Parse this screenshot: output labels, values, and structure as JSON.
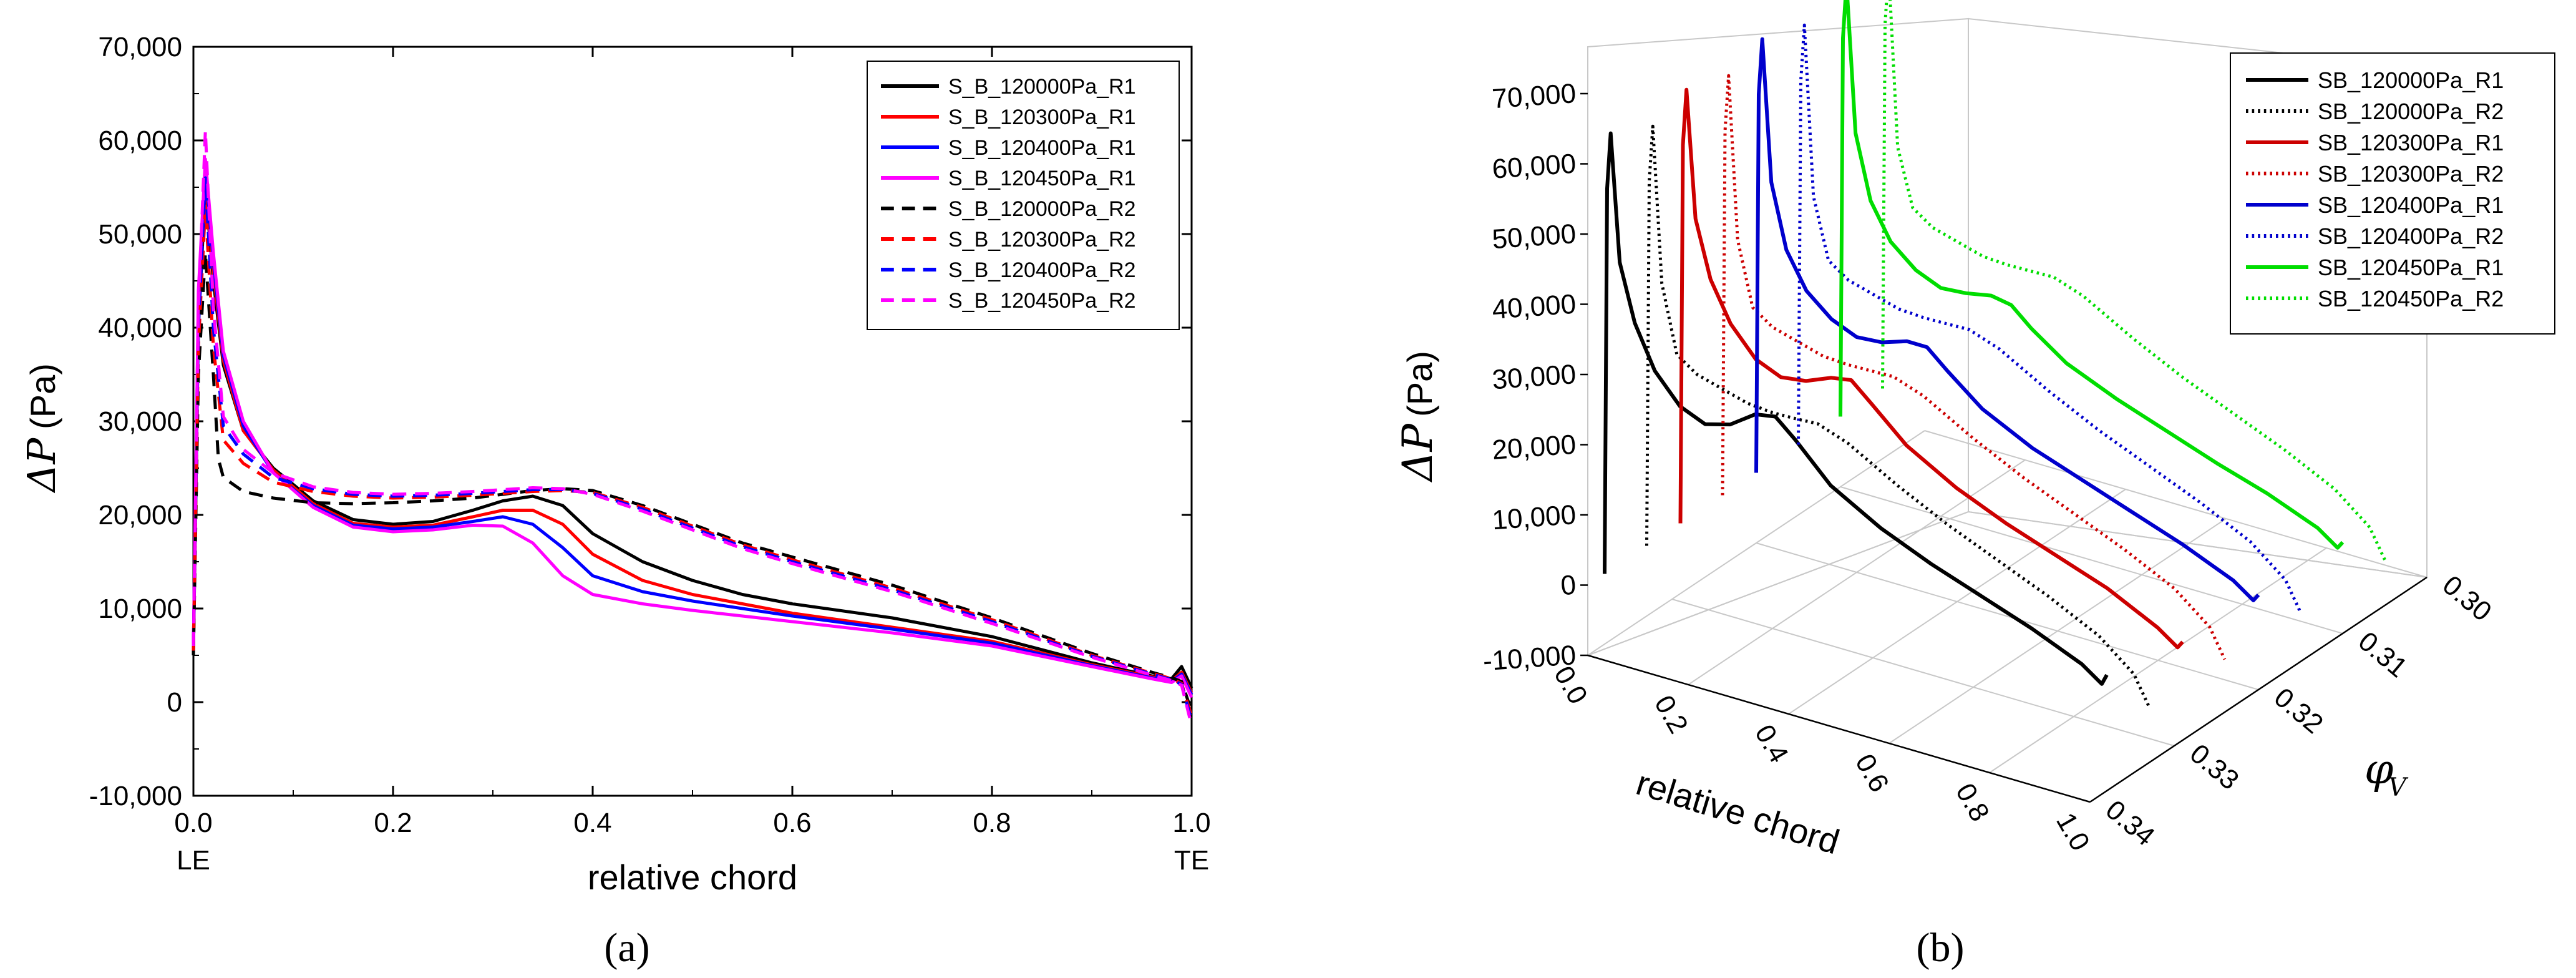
{
  "chart_data": [
    {
      "panel": "a",
      "type": "line",
      "panel_label": "(a)",
      "xlabel": "relative chord",
      "ylabel_symbol": "ΔP",
      "ylabel_unit": "(Pa)",
      "xlim": [
        0,
        1
      ],
      "ylim": [
        -10000,
        70000
      ],
      "x_ticks": [
        "0.0",
        "0.2",
        "0.4",
        "0.6",
        "0.8",
        "1.0"
      ],
      "y_ticks": [
        "-10,000",
        "0",
        "10,000",
        "20,000",
        "30,000",
        "40,000",
        "50,000",
        "60,000",
        "70,000"
      ],
      "x_end_labels": [
        "LE",
        "TE"
      ],
      "grid": false,
      "legend_position": "top-right",
      "series": [
        {
          "name": "S_B_120000Pa_R1",
          "color": "#000000",
          "dash": "solid",
          "x": [
            0.0,
            0.005,
            0.012,
            0.02,
            0.03,
            0.05,
            0.08,
            0.12,
            0.16,
            0.2,
            0.24,
            0.28,
            0.31,
            0.34,
            0.37,
            0.4,
            0.45,
            0.5,
            0.55,
            0.6,
            0.7,
            0.8,
            0.9,
            0.96,
            0.98,
            0.99,
            1.0
          ],
          "y": [
            5000,
            40000,
            55000,
            45000,
            36000,
            29000,
            25000,
            21500,
            19500,
            19000,
            19300,
            20500,
            21500,
            22000,
            21000,
            18000,
            15000,
            13000,
            11500,
            10500,
            9000,
            7000,
            4200,
            2800,
            2500,
            3800,
            1500
          ]
        },
        {
          "name": "S_B_120300Pa_R1",
          "color": "#ff0000",
          "dash": "solid",
          "x": [
            0.0,
            0.005,
            0.012,
            0.02,
            0.03,
            0.05,
            0.08,
            0.12,
            0.16,
            0.2,
            0.24,
            0.28,
            0.31,
            0.34,
            0.37,
            0.4,
            0.45,
            0.5,
            0.55,
            0.6,
            0.7,
            0.8,
            0.9,
            0.96,
            0.98,
            0.99,
            1.0
          ],
          "y": [
            6000,
            42000,
            56000,
            46000,
            36500,
            29000,
            24800,
            21200,
            19100,
            18700,
            18900,
            19800,
            20500,
            20500,
            19000,
            15800,
            13000,
            11500,
            10500,
            9500,
            8000,
            6500,
            4000,
            2700,
            2300,
            3200,
            1000
          ]
        },
        {
          "name": "S_B_120400Pa_R1",
          "color": "#0000ff",
          "dash": "solid",
          "x": [
            0.0,
            0.005,
            0.012,
            0.02,
            0.03,
            0.05,
            0.08,
            0.12,
            0.16,
            0.2,
            0.24,
            0.28,
            0.31,
            0.34,
            0.37,
            0.4,
            0.45,
            0.5,
            0.55,
            0.6,
            0.7,
            0.8,
            0.9,
            0.96,
            0.98,
            0.99,
            1.0
          ],
          "y": [
            6000,
            43000,
            57000,
            47000,
            37000,
            29500,
            24500,
            21000,
            18900,
            18500,
            18700,
            19300,
            19800,
            19000,
            16500,
            13500,
            11800,
            10800,
            10000,
            9200,
            7800,
            6300,
            3900,
            2600,
            2200,
            3000,
            800
          ]
        },
        {
          "name": "S_B_120450Pa_R1",
          "color": "#ff00ff",
          "dash": "solid",
          "x": [
            0.0,
            0.005,
            0.012,
            0.02,
            0.03,
            0.05,
            0.08,
            0.12,
            0.16,
            0.2,
            0.24,
            0.28,
            0.31,
            0.34,
            0.37,
            0.4,
            0.45,
            0.5,
            0.55,
            0.6,
            0.7,
            0.8,
            0.9,
            0.96,
            0.98,
            0.99,
            1.0
          ],
          "y": [
            6000,
            44000,
            58000,
            48000,
            37500,
            30000,
            24500,
            20800,
            18700,
            18200,
            18400,
            18900,
            18800,
            17000,
            13500,
            11500,
            10500,
            9800,
            9200,
            8600,
            7400,
            6000,
            3800,
            2500,
            2100,
            2800,
            500
          ]
        },
        {
          "name": "S_B_120000Pa_R2",
          "color": "#000000",
          "dash": "dashed",
          "x": [
            0.0,
            0.005,
            0.012,
            0.02,
            0.025,
            0.03,
            0.05,
            0.08,
            0.12,
            0.16,
            0.2,
            0.24,
            0.28,
            0.31,
            0.34,
            0.37,
            0.4,
            0.45,
            0.5,
            0.55,
            0.6,
            0.7,
            0.8,
            0.9,
            0.96,
            0.98,
            0.99,
            1.0
          ],
          "y": [
            5000,
            35000,
            48000,
            35000,
            26000,
            24000,
            22500,
            21800,
            21300,
            21200,
            21300,
            21500,
            21800,
            22200,
            22600,
            22800,
            22600,
            21000,
            19000,
            17000,
            15500,
            12500,
            9000,
            5200,
            3200,
            2600,
            2200,
            -1000
          ]
        },
        {
          "name": "S_B_120300Pa_R2",
          "color": "#ff0000",
          "dash": "dashed",
          "x": [
            0.0,
            0.005,
            0.012,
            0.02,
            0.03,
            0.05,
            0.08,
            0.12,
            0.16,
            0.2,
            0.24,
            0.28,
            0.31,
            0.34,
            0.37,
            0.4,
            0.45,
            0.5,
            0.55,
            0.6,
            0.7,
            0.8,
            0.9,
            0.96,
            0.98,
            0.99,
            1.0
          ],
          "y": [
            5500,
            38000,
            53000,
            38000,
            28000,
            25500,
            23500,
            22500,
            22000,
            21800,
            21900,
            22100,
            22300,
            22500,
            22600,
            22400,
            20800,
            18800,
            16800,
            15200,
            12200,
            8800,
            5000,
            3100,
            2500,
            2000,
            -1500
          ]
        },
        {
          "name": "S_B_120400Pa_R2",
          "color": "#0000ff",
          "dash": "dashed",
          "x": [
            0.0,
            0.005,
            0.012,
            0.02,
            0.03,
            0.05,
            0.08,
            0.12,
            0.16,
            0.2,
            0.24,
            0.28,
            0.31,
            0.34,
            0.37,
            0.4,
            0.45,
            0.5,
            0.55,
            0.6,
            0.7,
            0.8,
            0.9,
            0.96,
            0.98,
            0.99,
            1.0
          ],
          "y": [
            6000,
            40000,
            56000,
            40000,
            29500,
            26500,
            24000,
            22800,
            22200,
            22000,
            22100,
            22300,
            22500,
            22700,
            22700,
            22300,
            20600,
            18600,
            16600,
            15000,
            12000,
            8600,
            4900,
            3000,
            2400,
            1900,
            -2000
          ]
        },
        {
          "name": "S_B_120450Pa_R2",
          "color": "#ff00ff",
          "dash": "dashed",
          "x": [
            0.0,
            0.005,
            0.012,
            0.02,
            0.03,
            0.05,
            0.08,
            0.12,
            0.16,
            0.2,
            0.24,
            0.28,
            0.31,
            0.34,
            0.37,
            0.4,
            0.45,
            0.5,
            0.55,
            0.6,
            0.7,
            0.8,
            0.9,
            0.96,
            0.98,
            0.99,
            1.0
          ],
          "y": [
            6000,
            42000,
            61000,
            42000,
            30500,
            27000,
            24500,
            23000,
            22400,
            22200,
            22300,
            22500,
            22700,
            22900,
            22800,
            22200,
            20400,
            18400,
            16400,
            14800,
            11800,
            8400,
            4800,
            2900,
            2300,
            1800,
            -2500
          ]
        }
      ]
    },
    {
      "panel": "b",
      "type": "line",
      "subtype": "3d-waterfall",
      "panel_label": "(b)",
      "xlabel": "relative chord",
      "ylabel_symbol": "ΔP",
      "ylabel_unit": "(Pa)",
      "zlabel_symbol": "φ",
      "zlabel_subscript": "V",
      "xlim": [
        0,
        1
      ],
      "ylim": [
        -10000,
        70000
      ],
      "zlim": [
        0.3,
        0.34
      ],
      "x_ticks": [
        "0.0",
        "0.2",
        "0.4",
        "0.6",
        "0.8",
        "1.0"
      ],
      "y_ticks": [
        "-10,000",
        "0",
        "10,000",
        "20,000",
        "30,000",
        "40,000",
        "50,000",
        "60,000",
        "70,000"
      ],
      "z_ticks": [
        "0.30",
        "0.31",
        "0.32",
        "0.33",
        "0.34"
      ],
      "grid": true,
      "legend_position": "top-right",
      "series": [
        {
          "name": "SB_120000Pa_R1",
          "color": "#000000",
          "dash": "solid",
          "phi_v": 0.338,
          "x": [
            0.0,
            0.005,
            0.012,
            0.03,
            0.06,
            0.1,
            0.15,
            0.2,
            0.25,
            0.3,
            0.34,
            0.38,
            0.45,
            0.55,
            0.65,
            0.75,
            0.85,
            0.95,
            0.99,
            1.0
          ],
          "y": [
            0,
            55000,
            63000,
            45000,
            37000,
            31000,
            27000,
            25500,
            26500,
            29000,
            29500,
            27000,
            22000,
            18000,
            15000,
            12500,
            10000,
            7000,
            5000,
            6500
          ]
        },
        {
          "name": "SB_120000Pa_R2",
          "color": "#000000",
          "dash": "dotted",
          "phi_v": 0.333,
          "x": [
            0.0,
            0.005,
            0.012,
            0.03,
            0.06,
            0.1,
            0.15,
            0.2,
            0.25,
            0.3,
            0.34,
            0.4,
            0.5,
            0.6,
            0.7,
            0.8,
            0.9,
            0.97,
            1.0
          ],
          "y": [
            0,
            52000,
            60000,
            38000,
            28500,
            26500,
            25500,
            24500,
            24200,
            24300,
            24500,
            23000,
            19000,
            15500,
            12500,
            9500,
            6000,
            2000,
            -2000
          ]
        },
        {
          "name": "SB_120300Pa_R1",
          "color": "#cc0000",
          "dash": "solid",
          "phi_v": 0.329,
          "x": [
            0.0,
            0.005,
            0.012,
            0.03,
            0.06,
            0.1,
            0.15,
            0.2,
            0.25,
            0.3,
            0.34,
            0.38,
            0.45,
            0.55,
            0.65,
            0.75,
            0.85,
            0.95,
            0.99,
            1.0
          ],
          "y": [
            0,
            54000,
            62000,
            44000,
            36000,
            30500,
            26500,
            25000,
            25500,
            27000,
            27500,
            25000,
            20500,
            16500,
            13500,
            11000,
            8500,
            5000,
            3000,
            4000
          ]
        },
        {
          "name": "SB_120300Pa_R2",
          "color": "#cc0000",
          "dash": "dotted",
          "phi_v": 0.324,
          "x": [
            0.0,
            0.005,
            0.012,
            0.03,
            0.06,
            0.1,
            0.15,
            0.2,
            0.25,
            0.3,
            0.34,
            0.4,
            0.5,
            0.6,
            0.7,
            0.8,
            0.9,
            0.97,
            1.0
          ],
          "y": [
            0,
            52000,
            60000,
            37000,
            28000,
            26000,
            25000,
            24000,
            23800,
            23900,
            24000,
            22500,
            18500,
            15000,
            12000,
            9000,
            5500,
            1500,
            -2500
          ]
        },
        {
          "name": "SB_120400Pa_R1",
          "color": "#0000cc",
          "dash": "solid",
          "phi_v": 0.32,
          "x": [
            0.0,
            0.005,
            0.012,
            0.03,
            0.06,
            0.1,
            0.15,
            0.2,
            0.25,
            0.3,
            0.34,
            0.38,
            0.45,
            0.55,
            0.65,
            0.75,
            0.85,
            0.95,
            0.99,
            1.0
          ],
          "y": [
            0,
            54000,
            62000,
            42000,
            33000,
            28000,
            25000,
            23500,
            23800,
            25000,
            25000,
            22500,
            18500,
            15000,
            12500,
            10000,
            7500,
            4500,
            2500,
            3500
          ]
        },
        {
          "name": "SB_120400Pa_R2",
          "color": "#0000cc",
          "dash": "dotted",
          "phi_v": 0.315,
          "x": [
            0.0,
            0.005,
            0.012,
            0.03,
            0.06,
            0.1,
            0.15,
            0.2,
            0.25,
            0.3,
            0.34,
            0.4,
            0.5,
            0.6,
            0.7,
            0.8,
            0.9,
            0.97,
            1.0
          ],
          "y": [
            0,
            52000,
            60000,
            36000,
            27500,
            25500,
            24500,
            23500,
            23300,
            23400,
            23500,
            22000,
            18000,
            14500,
            11500,
            8500,
            5000,
            1000,
            -3000
          ]
        },
        {
          "name": "SB_120450Pa_R1",
          "color": "#00dd00",
          "dash": "solid",
          "phi_v": 0.31,
          "x": [
            0.0,
            0.005,
            0.012,
            0.03,
            0.06,
            0.1,
            0.15,
            0.2,
            0.25,
            0.3,
            0.34,
            0.38,
            0.45,
            0.55,
            0.65,
            0.75,
            0.85,
            0.95,
            0.99,
            1.0
          ],
          "y": [
            0,
            54000,
            62000,
            41000,
            32000,
            27000,
            24000,
            22500,
            22800,
            23500,
            23000,
            20500,
            17000,
            14000,
            11500,
            9000,
            6800,
            4000,
            2000,
            3000
          ]
        },
        {
          "name": "SB_120450Pa_R2",
          "color": "#00dd00",
          "dash": "dotted",
          "phi_v": 0.305,
          "x": [
            0.0,
            0.005,
            0.012,
            0.03,
            0.06,
            0.1,
            0.15,
            0.2,
            0.25,
            0.3,
            0.34,
            0.4,
            0.5,
            0.6,
            0.7,
            0.8,
            0.9,
            0.97,
            1.0
          ],
          "y": [
            0,
            52000,
            60000,
            35000,
            27000,
            25000,
            24000,
            23000,
            22800,
            22900,
            23000,
            21500,
            17500,
            14000,
            11000,
            8000,
            4500,
            500,
            -3500
          ]
        }
      ]
    }
  ]
}
